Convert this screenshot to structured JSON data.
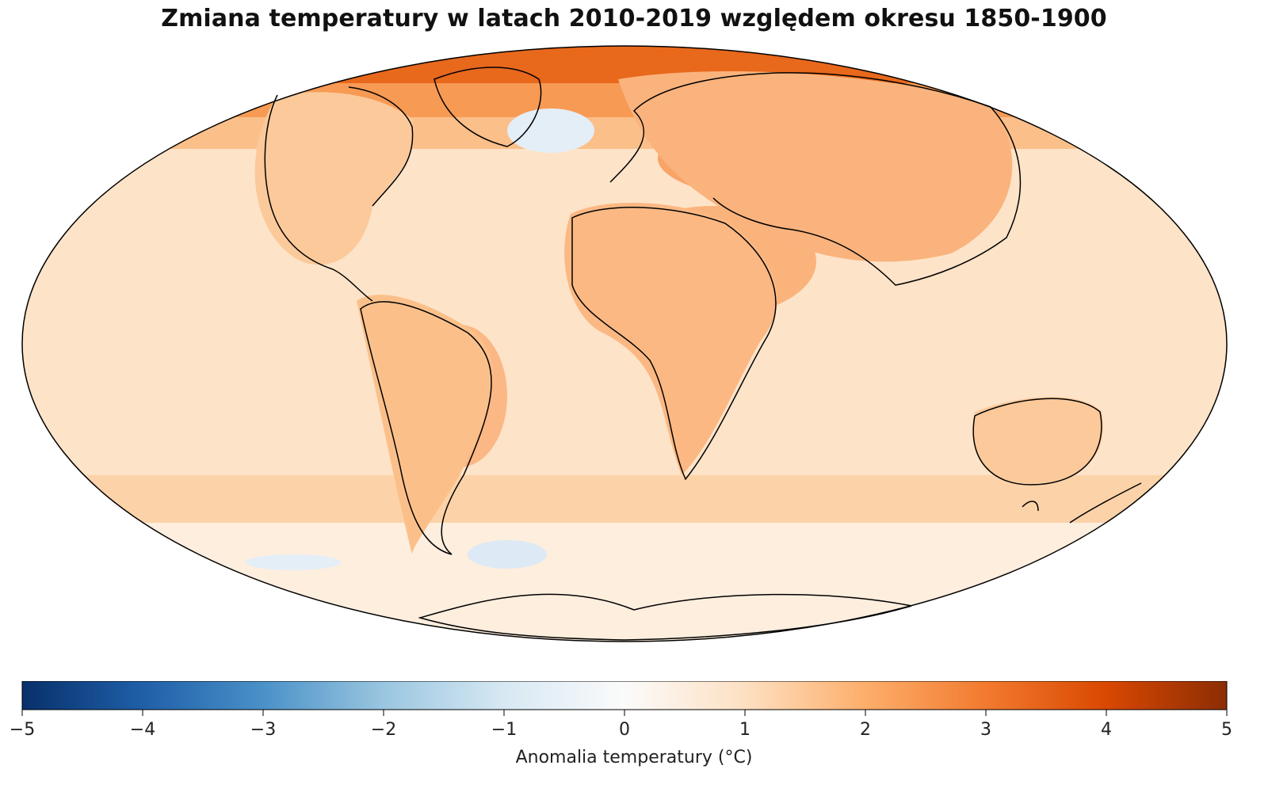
{
  "title": "Zmiana temperatury w latach 2010-2019 względem okresu 1850-1900",
  "map": {
    "projection": "Mollweide",
    "colormap": "diverging blue-white-orange",
    "colors": {
      "neg5": "#08306b",
      "neg4": "#1f5fa8",
      "neg3": "#4a91c8",
      "neg2": "#9ac6e0",
      "neg1": "#d7e8f3",
      "zero": "#fbfbfb",
      "pos1": "#fde0c2",
      "pos2": "#fdae6b",
      "pos3": "#f27a2f",
      "pos4": "#d94801",
      "pos5": "#8c2d04",
      "coastline": "#000000"
    },
    "features": [
      "warming strongest in Arctic",
      "slight cooling south of Greenland",
      "slight cooling in Southern Ocean"
    ]
  },
  "colorbar": {
    "label": "Anomalia temperatury (°C)",
    "min": -5,
    "max": 5,
    "ticks": [
      "−5",
      "−4",
      "−3",
      "−2",
      "−1",
      "0",
      "1",
      "2",
      "3",
      "4",
      "5"
    ]
  }
}
